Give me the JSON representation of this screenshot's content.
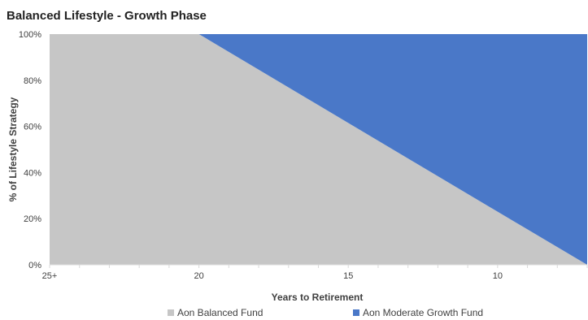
{
  "chart_data": {
    "type": "area",
    "stacked": true,
    "title": "Balanced Lifestyle - Growth Phase",
    "xlabel": "Years to Retirement",
    "ylabel": "% of Lifestyle Strategy",
    "x": [
      25,
      20,
      15,
      10,
      7
    ],
    "x_tick_values": [
      25,
      20,
      15,
      10
    ],
    "x_tick_labels": [
      "25+",
      "20",
      "15",
      "10"
    ],
    "xlim": [
      25,
      7
    ],
    "ylim": [
      0,
      100
    ],
    "y_ticks": [
      0,
      20,
      40,
      60,
      80,
      100
    ],
    "y_tick_labels": [
      "0%",
      "20%",
      "40%",
      "60%",
      "80%",
      "100%"
    ],
    "grid": false,
    "legend_position": "bottom",
    "series": [
      {
        "name": "Aon Balanced Fund",
        "color": "#c6c6c6",
        "values": [
          100,
          100,
          61.5,
          23,
          0
        ]
      },
      {
        "name": "Aon Moderate Growth Fund",
        "color": "#4a78c8",
        "values": [
          0,
          0,
          38.5,
          77,
          100
        ]
      }
    ]
  }
}
